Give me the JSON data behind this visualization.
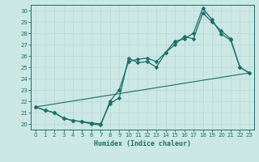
{
  "xlabel": "Humidex (Indice chaleur)",
  "bg_color": "#cce8e5",
  "line_color": "#1a7068",
  "grid_color": "#b8d8d5",
  "xlim": [
    -0.5,
    23.5
  ],
  "ylim": [
    19.5,
    30.5
  ],
  "xticks": [
    0,
    1,
    2,
    3,
    4,
    5,
    6,
    7,
    8,
    9,
    10,
    11,
    12,
    13,
    14,
    15,
    16,
    17,
    18,
    19,
    20,
    21,
    22,
    23
  ],
  "yticks": [
    20,
    21,
    22,
    23,
    24,
    25,
    26,
    27,
    28,
    29,
    30
  ],
  "series_line": {
    "x": [
      0,
      23
    ],
    "y": [
      21.5,
      24.5
    ]
  },
  "series_a": {
    "x": [
      0,
      1,
      2,
      3,
      4,
      5,
      6,
      7,
      8,
      9,
      10,
      11,
      12,
      13,
      14,
      15,
      16,
      17,
      18,
      19,
      20,
      21,
      22,
      23
    ],
    "y": [
      21.5,
      21.2,
      21.0,
      20.5,
      20.3,
      20.2,
      20.1,
      20.0,
      21.8,
      22.3,
      25.8,
      25.4,
      25.5,
      25.0,
      26.3,
      27.3,
      27.5,
      28.0,
      30.2,
      29.2,
      27.9,
      27.4,
      25.0,
      24.5
    ]
  },
  "series_b": {
    "x": [
      0,
      1,
      2,
      3,
      4,
      5,
      6,
      7,
      8,
      9,
      10,
      11,
      12,
      13,
      14,
      15,
      16,
      17,
      18,
      19,
      20,
      21,
      22,
      23
    ],
    "y": [
      21.5,
      21.2,
      21.0,
      20.5,
      20.3,
      20.2,
      20.0,
      19.9,
      22.0,
      23.0,
      25.5,
      25.7,
      25.8,
      25.5,
      26.3,
      27.0,
      27.7,
      27.5,
      29.8,
      29.0,
      28.2,
      27.5,
      25.0,
      24.5
    ]
  }
}
